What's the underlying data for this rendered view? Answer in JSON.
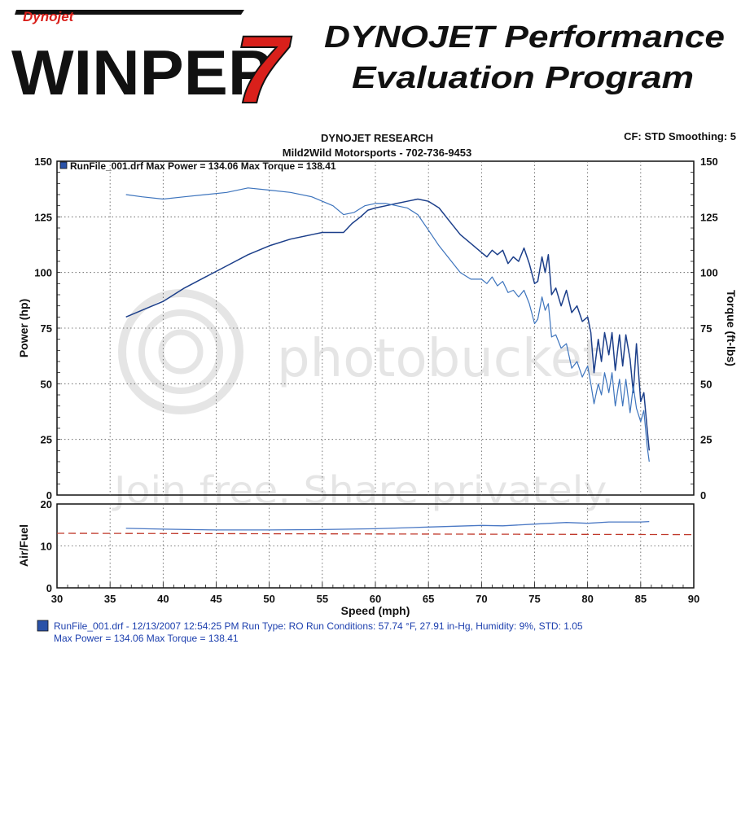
{
  "logo": {
    "brand_small": "Dynojet",
    "brand_main": "WINPEP",
    "version": "7"
  },
  "header": {
    "title_line1": "DYNOJET Performance",
    "title_line2": "Evaluation Program"
  },
  "chart_header": {
    "company": "DYNOJET RESEARCH",
    "shop": "Mild2Wild Motorsports - 702-736-9453",
    "settings": "CF: STD  Smoothing: 5"
  },
  "watermark": {
    "brand": "photobucket",
    "tagline": "Join free. Share privately."
  },
  "colors": {
    "power": "#1c3f8a",
    "torque": "#3d74bd",
    "af_line": "#4a78c4",
    "af_target": "#c0392b",
    "grid": "#555555",
    "accent": "#d9201b"
  },
  "legend": {
    "inline": "RunFile_001.drf Max Power = 134.06      Max Torque = 138.41",
    "footer_line1": "RunFile_001.drf - 12/13/2007 12:54:25 PM  Run Type: RO  Run Conditions: 57.74 °F, 27.91 in-Hg,  Humidity:  9%, STD: 1.05",
    "footer_line2": "Max Power = 134.06  Max Torque = 138.41"
  },
  "chart_data": [
    {
      "type": "line",
      "title": "DYNOJET RESEARCH",
      "xlabel": "Speed (mph)",
      "ylabel": "Power (hp)",
      "y2label": "Torque (ft-lbs)",
      "xlim": [
        30,
        90
      ],
      "ylim": [
        0,
        150
      ],
      "y2lim": [
        0,
        150
      ],
      "x_ticks": [
        "30",
        "35",
        "40",
        "45",
        "50",
        "55",
        "60",
        "65",
        "70",
        "75",
        "80",
        "85",
        "90"
      ],
      "y_ticks": [
        "0",
        "25",
        "50",
        "75",
        "100",
        "125",
        "150"
      ],
      "y2_ticks": [
        "0",
        "25",
        "50",
        "75",
        "100",
        "125",
        "150"
      ],
      "grid": true,
      "series": [
        {
          "name": "Power (hp)",
          "axis": "left",
          "x": [
            36.5,
            38,
            40,
            42,
            44,
            46,
            48,
            50,
            52,
            54,
            55,
            56,
            57,
            57.8,
            58.6,
            59.3,
            60,
            61,
            62,
            63,
            64,
            65,
            66,
            67,
            68,
            69,
            70,
            70.5,
            71,
            71.5,
            72,
            72.5,
            73,
            73.5,
            74,
            74.5,
            75,
            75.3,
            75.7,
            76,
            76.3,
            76.6,
            77,
            77.5,
            78,
            78.5,
            79,
            79.5,
            80,
            80.3,
            80.6,
            81,
            81.3,
            81.6,
            82,
            82.3,
            82.6,
            83,
            83.3,
            83.6,
            84,
            84.3,
            84.6,
            85,
            85.3,
            85.6,
            85.8
          ],
          "y": [
            80,
            83,
            87,
            93,
            98,
            103,
            108,
            112,
            115,
            117,
            118,
            118,
            118,
            122,
            125,
            128,
            129,
            130,
            131,
            132,
            133,
            132,
            129,
            123,
            117,
            113,
            109,
            107,
            110,
            108,
            110,
            104,
            107,
            105,
            111,
            104,
            95,
            96,
            107,
            100,
            108,
            90,
            93,
            85,
            92,
            82,
            85,
            78,
            80,
            73,
            55,
            70,
            60,
            73,
            63,
            73,
            56,
            72,
            58,
            72,
            61,
            46,
            68,
            42,
            46,
            30,
            20
          ],
          "max_label": "134.06"
        },
        {
          "name": "Torque (ft-lbs)",
          "axis": "right",
          "x": [
            36.5,
            38,
            40,
            42,
            44,
            46,
            48,
            50,
            52,
            54,
            56,
            57,
            58,
            59,
            60,
            61,
            62,
            63,
            64,
            65,
            66,
            67,
            68,
            69,
            70,
            70.5,
            71,
            71.5,
            72,
            72.5,
            73,
            73.5,
            74,
            74.5,
            75,
            75.3,
            75.7,
            76,
            76.3,
            76.6,
            77,
            77.5,
            78,
            78.5,
            79,
            79.5,
            80,
            80.3,
            80.6,
            81,
            81.3,
            81.6,
            82,
            82.3,
            82.6,
            83,
            83.3,
            83.6,
            84,
            84.3,
            84.6,
            85,
            85.3,
            85.6,
            85.8
          ],
          "y": [
            135,
            134,
            133,
            134,
            135,
            136,
            138,
            137,
            136,
            134,
            130,
            126,
            127,
            130,
            131,
            131,
            130,
            129,
            126,
            119,
            112,
            106,
            100,
            97,
            97,
            95,
            98,
            94,
            96,
            91,
            92,
            89,
            92,
            86,
            77,
            79,
            89,
            83,
            86,
            71,
            72,
            66,
            68,
            57,
            60,
            53,
            58,
            50,
            41,
            50,
            45,
            55,
            46,
            55,
            40,
            52,
            40,
            52,
            37,
            49,
            39,
            33,
            38,
            22,
            15
          ],
          "max_label": "138.41"
        }
      ]
    },
    {
      "type": "line",
      "xlabel": "Speed (mph)",
      "ylabel": "Air/Fuel",
      "xlim": [
        30,
        90
      ],
      "ylim": [
        0,
        20
      ],
      "x_ticks": [
        "30",
        "35",
        "40",
        "45",
        "50",
        "55",
        "60",
        "65",
        "70",
        "75",
        "80",
        "85",
        "90"
      ],
      "y_ticks": [
        "0",
        "10",
        "20"
      ],
      "grid": true,
      "series": [
        {
          "name": "Air/Fuel",
          "x": [
            36.5,
            40,
            45,
            50,
            55,
            60,
            65,
            70,
            72,
            75,
            78,
            80,
            82,
            85,
            85.8
          ],
          "y": [
            14.2,
            14.0,
            13.8,
            13.8,
            13.9,
            14.1,
            14.5,
            14.9,
            14.8,
            15.2,
            15.6,
            15.4,
            15.7,
            15.7,
            15.8
          ]
        },
        {
          "name": "Target A/F",
          "x": [
            30,
            90
          ],
          "y": [
            13.0,
            12.7
          ],
          "style": "dashed"
        }
      ]
    }
  ]
}
